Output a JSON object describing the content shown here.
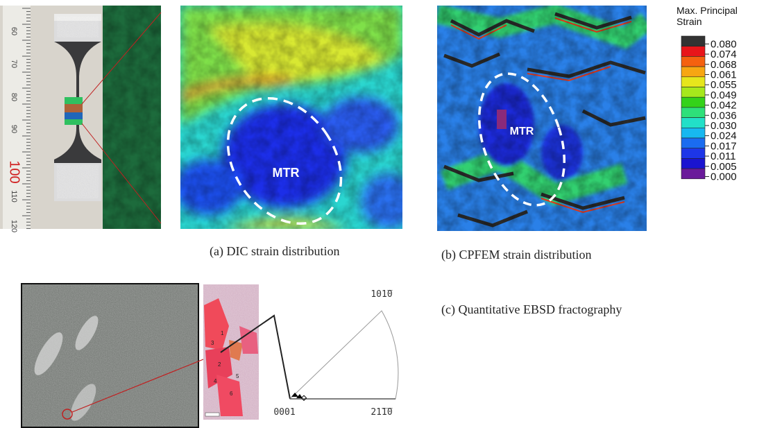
{
  "figure": {
    "specimen": {
      "ruler_labels": [
        "60",
        "70",
        "80",
        "90",
        "100",
        "110",
        "120"
      ]
    },
    "dic": {
      "label": "MTR",
      "caption": "(a) DIC strain distribution"
    },
    "cpfem": {
      "label": "MTR",
      "caption": "(b) CPFEM strain distribution"
    },
    "legend": {
      "title": [
        "Max. Principal",
        "Strain"
      ],
      "items": [
        {
          "label": "0.080",
          "color": "#333333"
        },
        {
          "label": "0.074",
          "color": "#e8151a"
        },
        {
          "label": "0.068",
          "color": "#f5610f"
        },
        {
          "label": "0.061",
          "color": "#f7a612"
        },
        {
          "label": "0.055",
          "color": "#e6e61c"
        },
        {
          "label": "0.049",
          "color": "#a6e81c"
        },
        {
          "label": "0.042",
          "color": "#34d21a"
        },
        {
          "label": "0.036",
          "color": "#2ee07a"
        },
        {
          "label": "0.030",
          "color": "#22e0c8"
        },
        {
          "label": "0.024",
          "color": "#17b8f0"
        },
        {
          "label": "0.017",
          "color": "#1a6cf0"
        },
        {
          "label": "0.011",
          "color": "#1d36e8"
        },
        {
          "label": "0.005",
          "color": "#1a14d0"
        },
        {
          "label": "0.000",
          "color": "#6a1a9a"
        }
      ]
    },
    "ebsd": {
      "caption": "(c) Quantitative EBSD fractography",
      "grains": [
        "1",
        "2",
        "3",
        "4",
        "5",
        "6"
      ],
      "pole_figure": {
        "top": "101̅0",
        "origin": "0001",
        "right": "21̅1̅0"
      }
    }
  }
}
